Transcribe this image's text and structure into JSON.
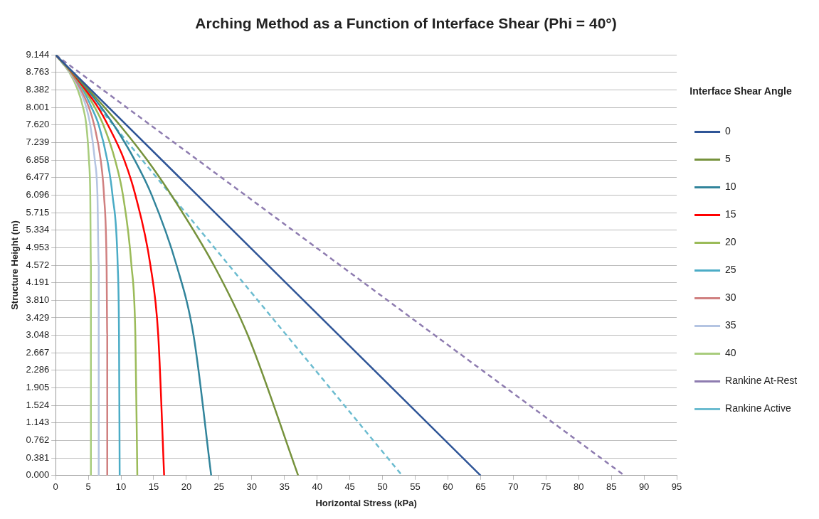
{
  "chart_data": {
    "type": "line",
    "title": "Arching Method as a Function of Interface Shear (Phi = 40°)",
    "xlabel": "Horizontal Stress (kPa)",
    "ylabel": "Structure Height (m)",
    "legend_title": "Interface Shear Angle",
    "xlim": [
      0,
      95
    ],
    "xticks": [
      0,
      5,
      10,
      15,
      20,
      25,
      30,
      35,
      40,
      45,
      50,
      55,
      60,
      65,
      70,
      75,
      80,
      85,
      90,
      95
    ],
    "ylim": [
      0,
      9.144
    ],
    "yticks": [
      {
        "value": 0,
        "label": "0.000"
      },
      0.381,
      0.762,
      1.143,
      1.524,
      1.905,
      2.286,
      2.667,
      3.048,
      3.429,
      {
        "value": 3.81,
        "label": "3.810"
      },
      4.191,
      4.572,
      4.953,
      5.334,
      5.715,
      6.096,
      6.477,
      6.858,
      7.239,
      {
        "value": 7.62,
        "label": "7.620"
      },
      8.001,
      8.382,
      8.763,
      9.144
    ],
    "grid": "y",
    "legend": "right",
    "marker": "none",
    "line_style": "solid",
    "series": [
      {
        "name": "0",
        "color": "#2f5597",
        "x": [
          0,
          65
        ],
        "values": [
          9.144,
          0
        ]
      },
      {
        "name": "5",
        "color": "#76923c",
        "x": [
          0,
          2.6,
          5.1,
          7.5,
          9.8,
          14.0,
          17.7,
          24.2,
          29.4,
          37.1
        ],
        "values": [
          9.144,
          8.763,
          8.382,
          8.001,
          7.62,
          6.858,
          6.096,
          4.572,
          3.048,
          0
        ]
      },
      {
        "name": "10",
        "color": "#31849b",
        "x": [
          0,
          2.6,
          4.9,
          7.0,
          8.9,
          12.1,
          14.7,
          18.5,
          21.1,
          23.8
        ],
        "values": [
          9.144,
          8.763,
          8.382,
          8.001,
          7.62,
          6.858,
          6.096,
          4.572,
          3.048,
          0
        ]
      },
      {
        "name": "15",
        "color": "#ff0000",
        "x": [
          0,
          2.5,
          4.6,
          6.5,
          8.0,
          10.5,
          12.2,
          14.5,
          15.7,
          16.6
        ],
        "values": [
          9.144,
          8.763,
          8.382,
          8.001,
          7.62,
          6.858,
          6.096,
          4.572,
          3.048,
          0
        ]
      },
      {
        "name": "20",
        "color": "#9bbb59",
        "x": [
          0,
          2.4,
          4.4,
          6.0,
          7.3,
          9.1,
          10.3,
          11.6,
          12.2,
          12.5
        ],
        "values": [
          9.144,
          8.763,
          8.382,
          8.001,
          7.62,
          6.858,
          6.096,
          4.572,
          3.048,
          0
        ]
      },
      {
        "name": "25",
        "color": "#4bacc6",
        "x": [
          0,
          2.4,
          4.2,
          5.5,
          6.6,
          7.9,
          8.7,
          9.5,
          9.7,
          9.8
        ],
        "values": [
          9.144,
          8.763,
          8.382,
          8.001,
          7.62,
          6.858,
          6.096,
          4.572,
          3.048,
          0
        ]
      },
      {
        "name": "30",
        "color": "#d08080",
        "x": [
          0,
          2.3,
          3.9,
          5.1,
          5.9,
          6.9,
          7.4,
          7.8,
          7.9,
          7.9
        ],
        "values": [
          9.144,
          8.763,
          8.382,
          8.001,
          7.62,
          6.858,
          6.096,
          4.572,
          3.048,
          0
        ]
      },
      {
        "name": "35",
        "color": "#b4c4e2",
        "x": [
          0,
          2.2,
          3.7,
          4.7,
          5.3,
          6.0,
          6.4,
          6.6,
          6.6,
          6.6
        ],
        "values": [
          9.144,
          8.763,
          8.382,
          8.001,
          7.62,
          6.858,
          6.096,
          4.572,
          3.048,
          0
        ]
      },
      {
        "name": "40",
        "color": "#a8cc7c",
        "x": [
          0,
          2.1,
          3.4,
          4.2,
          4.7,
          5.1,
          5.3,
          5.4,
          5.4,
          5.4
        ],
        "values": [
          9.144,
          8.763,
          8.382,
          8.001,
          7.62,
          6.858,
          6.096,
          4.572,
          3.048,
          0
        ]
      },
      {
        "name": "Rankine At-Rest",
        "color": "#8e7cb0",
        "line_style": "dashed",
        "x": [
          0,
          87
        ],
        "values": [
          9.144,
          0
        ]
      },
      {
        "name": "Rankine Active",
        "color": "#6cbcd0",
        "line_style": "dashed",
        "x": [
          0,
          53
        ],
        "values": [
          9.144,
          0
        ]
      }
    ]
  }
}
